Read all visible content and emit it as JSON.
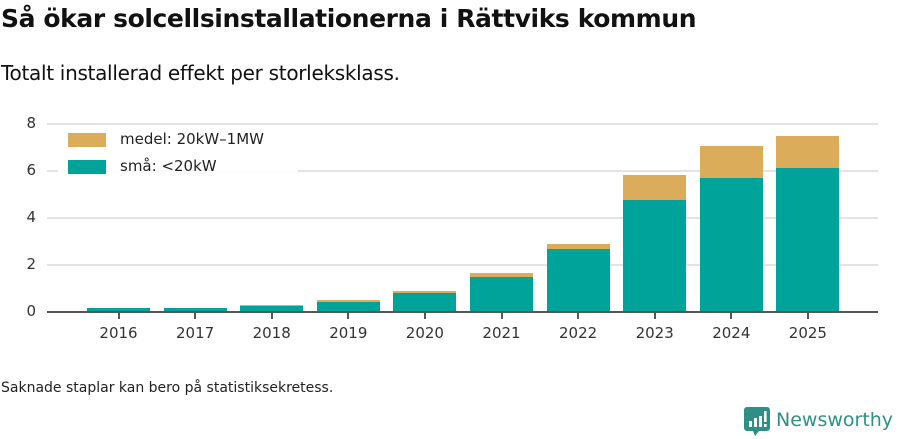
{
  "header": {
    "title": "Så ökar solcellsinstallationerna i Rättviks kommun",
    "subtitle": "Totalt installerad effekt per storleksklass."
  },
  "legend": {
    "items": [
      {
        "label": "medel: 20kW–1MW",
        "color": "#dbad5a"
      },
      {
        "label": "små: <20kW",
        "color": "#00a399"
      }
    ]
  },
  "axis": {
    "y_ticks": [
      "0",
      "2",
      "4",
      "6",
      "8"
    ],
    "x_ticks": [
      "2016",
      "2017",
      "2018",
      "2019",
      "2020",
      "2021",
      "2022",
      "2023",
      "2024",
      "2025"
    ]
  },
  "footer": {
    "note": "Saknade staplar kan bero på statistiksekretess.",
    "brand": "Newsworthy"
  },
  "colors": {
    "medel": "#dbad5a",
    "sma": "#00a399",
    "grid": "#e3e3e3",
    "axis": "#555555",
    "brand": "#2f8f86"
  },
  "chart_data": {
    "type": "bar",
    "stacked": true,
    "title": "Så ökar solcellsinstallationerna i Rättviks kommun",
    "subtitle": "Totalt installerad effekt per storleksklass.",
    "xlabel": "",
    "ylabel": "",
    "ylim": [
      0,
      8
    ],
    "yticks": [
      0,
      2,
      4,
      6,
      8
    ],
    "grid": true,
    "legend_position": "top-left",
    "categories": [
      "2016",
      "2017",
      "2018",
      "2019",
      "2020",
      "2021",
      "2022",
      "2023",
      "2024",
      "2025"
    ],
    "series": [
      {
        "name": "små: <20kW",
        "color": "#00a399",
        "values": [
          0.11,
          0.14,
          0.2,
          0.38,
          0.75,
          1.44,
          2.63,
          4.71,
          5.68,
          6.07
        ]
      },
      {
        "name": "medel: 20kW–1MW",
        "color": "#dbad5a",
        "values": [
          0.0,
          0.0,
          0.04,
          0.07,
          0.09,
          0.17,
          0.21,
          1.06,
          1.33,
          1.37
        ]
      }
    ],
    "annotations": [
      "Saknade staplar kan bero på statistiksekretess."
    ]
  }
}
